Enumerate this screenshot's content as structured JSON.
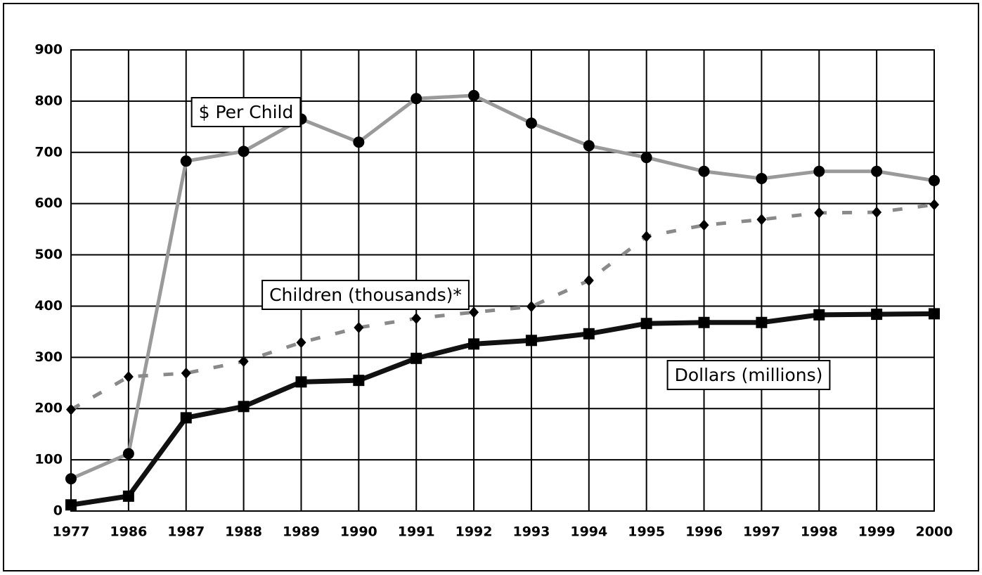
{
  "chart_data": {
    "type": "line",
    "categories": [
      "1977",
      "1986",
      "1987",
      "1988",
      "1989",
      "1990",
      "1991",
      "1992",
      "1993",
      "1994",
      "1995",
      "1996",
      "1997",
      "1998",
      "1999",
      "2000"
    ],
    "series": [
      {
        "name": "$ Per Child",
        "color": "#9a9a9a",
        "marker": "circle",
        "dashed": false,
        "values": [
          63,
          112,
          683,
          702,
          765,
          720,
          805,
          811,
          757,
          713,
          690,
          663,
          649,
          663,
          663,
          645
        ]
      },
      {
        "name": "Children (thousands)*",
        "color": "#8a8a8a",
        "marker": "diamond",
        "dashed": true,
        "values": [
          198,
          262,
          269,
          292,
          329,
          358,
          376,
          388,
          399,
          450,
          536,
          558,
          569,
          582,
          583,
          598
        ]
      },
      {
        "name": "Dollars (millions)",
        "color": "#111111",
        "marker": "square",
        "dashed": false,
        "values": [
          12,
          29,
          182,
          204,
          252,
          255,
          298,
          326,
          333,
          346,
          366,
          368,
          368,
          383,
          384,
          385
        ]
      }
    ],
    "ylim": [
      0,
      900
    ],
    "yticks": [
      0,
      100,
      200,
      300,
      400,
      500,
      600,
      700,
      800,
      900
    ],
    "grid": true
  }
}
